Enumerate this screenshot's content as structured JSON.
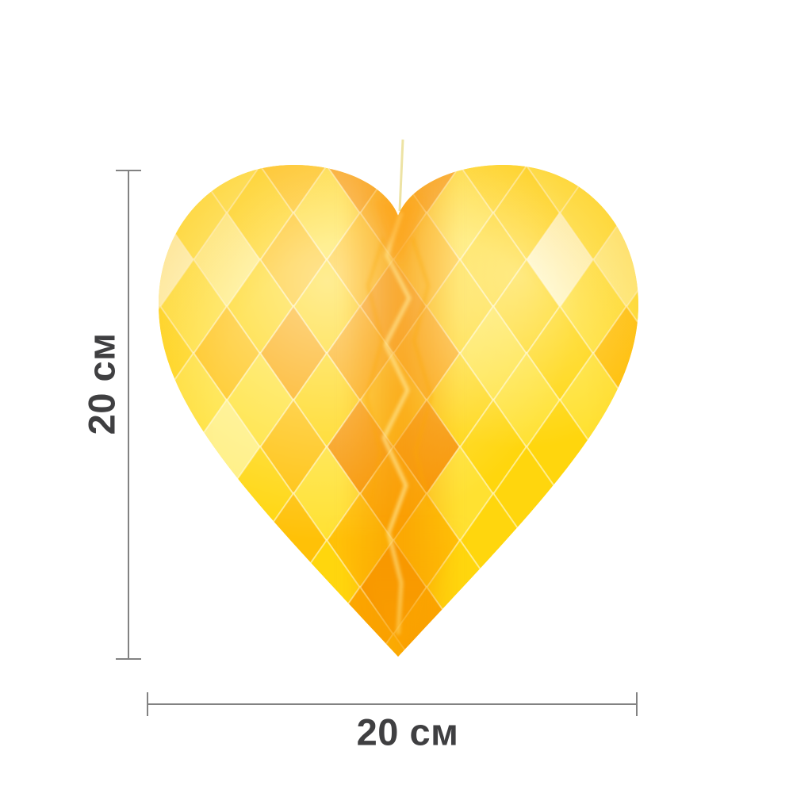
{
  "page": {
    "background": "#ffffff",
    "description": "Yellow honeycomb tissue-paper heart decoration shown on white with size dimension lines"
  },
  "product": {
    "name": "honeycomb-paper-heart",
    "color_name": "yellow",
    "colors": {
      "base": "#FFD60D",
      "bright": "#FFE131",
      "highlight": "#FFEF7E",
      "pale": "#FFF7BC",
      "deep": "#FFC107",
      "shadow": "#FCA800",
      "crease": "#F79500",
      "hot": "#FFA312",
      "string": "#EDE2A0",
      "fold_line": "rgba(255,250,215,0.55)"
    }
  },
  "dimensions": {
    "height_label": "20 см",
    "width_label": "20 см",
    "line_color": "#828282",
    "text_color": "#3f3f41"
  }
}
